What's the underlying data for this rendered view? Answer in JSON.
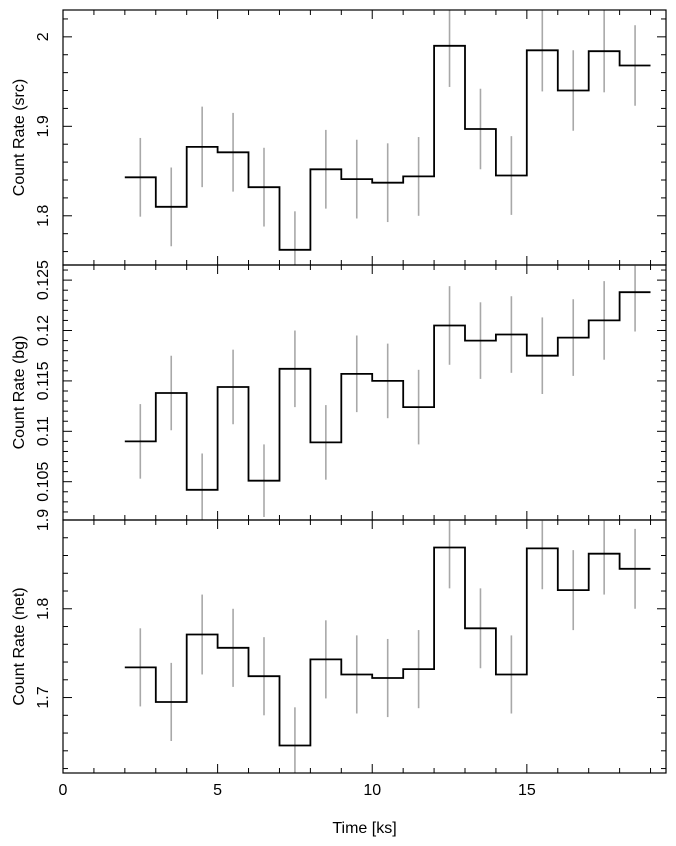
{
  "chart_data": [
    {
      "type": "line",
      "ylabel": "Count Rate (src)",
      "xlim": [
        0,
        19.5
      ],
      "ylim": [
        1.745,
        2.03
      ],
      "yticks": [
        1.8,
        1.9,
        2
      ],
      "ytick_labels": [
        "1.8",
        "1.9",
        "2"
      ],
      "bin_edges": [
        2,
        3,
        4,
        5,
        6,
        7,
        8,
        9,
        10,
        11,
        12,
        13,
        14,
        15,
        16,
        17,
        18,
        19
      ],
      "x": [
        2.5,
        3.5,
        4.5,
        5.5,
        6.5,
        7.5,
        8.5,
        9.5,
        10.5,
        11.5,
        12.5,
        13.5,
        14.5,
        15.5,
        16.5,
        17.5,
        18.5
      ],
      "y": [
        1.843,
        1.81,
        1.877,
        1.871,
        1.832,
        1.762,
        1.852,
        1.841,
        1.837,
        1.844,
        1.99,
        1.897,
        1.845,
        1.985,
        1.94,
        1.984,
        1.968
      ],
      "yerr": [
        0.044,
        0.044,
        0.045,
        0.044,
        0.044,
        0.043,
        0.044,
        0.044,
        0.044,
        0.044,
        0.046,
        0.045,
        0.044,
        0.046,
        0.045,
        0.046,
        0.045
      ]
    },
    {
      "type": "line",
      "ylabel": "Count Rate (bg)",
      "xlim": [
        0,
        19.5
      ],
      "ylim": [
        0.1012,
        0.1265
      ],
      "yticks": [
        0.105,
        0.11,
        0.115,
        0.12,
        0.125
      ],
      "ytick_labels": [
        "0.105",
        "0.11",
        "0.115",
        "0.12",
        "0.125"
      ],
      "bin_edges": [
        2,
        3,
        4,
        5,
        6,
        7,
        8,
        9,
        10,
        11,
        12,
        13,
        14,
        15,
        16,
        17,
        18,
        19
      ],
      "x": [
        2.5,
        3.5,
        4.5,
        5.5,
        6.5,
        7.5,
        8.5,
        9.5,
        10.5,
        11.5,
        12.5,
        13.5,
        14.5,
        15.5,
        16.5,
        17.5,
        18.5
      ],
      "y": [
        0.109,
        0.1138,
        0.1042,
        0.1144,
        0.1051,
        0.1162,
        0.1089,
        0.1157,
        0.115,
        0.1124,
        0.1205,
        0.119,
        0.1196,
        0.1175,
        0.1193,
        0.121,
        0.1238
      ],
      "yerr": [
        0.0037,
        0.0037,
        0.0036,
        0.0037,
        0.0036,
        0.0038,
        0.0037,
        0.0038,
        0.0037,
        0.0037,
        0.0039,
        0.0038,
        0.0038,
        0.0038,
        0.0038,
        0.0039,
        0.0039
      ]
    },
    {
      "type": "line",
      "ylabel": "Count Rate (net)",
      "xlim": [
        0,
        19.5
      ],
      "ylim": [
        1.615,
        1.9
      ],
      "yticks": [
        1.7,
        1.8,
        1.9
      ],
      "ytick_labels": [
        "1.7",
        "1.8",
        "1.9"
      ],
      "xticks": [
        0,
        5,
        10,
        15
      ],
      "xtick_labels": [
        "0",
        "5",
        "10",
        "15"
      ],
      "xlabel": "Time [ks]",
      "bin_edges": [
        2,
        3,
        4,
        5,
        6,
        7,
        8,
        9,
        10,
        11,
        12,
        13,
        14,
        15,
        16,
        17,
        18,
        19
      ],
      "x": [
        2.5,
        3.5,
        4.5,
        5.5,
        6.5,
        7.5,
        8.5,
        9.5,
        10.5,
        11.5,
        12.5,
        13.5,
        14.5,
        15.5,
        16.5,
        17.5,
        18.5
      ],
      "y": [
        1.734,
        1.695,
        1.771,
        1.756,
        1.724,
        1.646,
        1.743,
        1.726,
        1.722,
        1.732,
        1.869,
        1.778,
        1.726,
        1.868,
        1.821,
        1.862,
        1.845
      ],
      "yerr": [
        0.044,
        0.044,
        0.045,
        0.044,
        0.044,
        0.043,
        0.044,
        0.044,
        0.044,
        0.044,
        0.046,
        0.045,
        0.044,
        0.046,
        0.045,
        0.046,
        0.045
      ]
    }
  ]
}
